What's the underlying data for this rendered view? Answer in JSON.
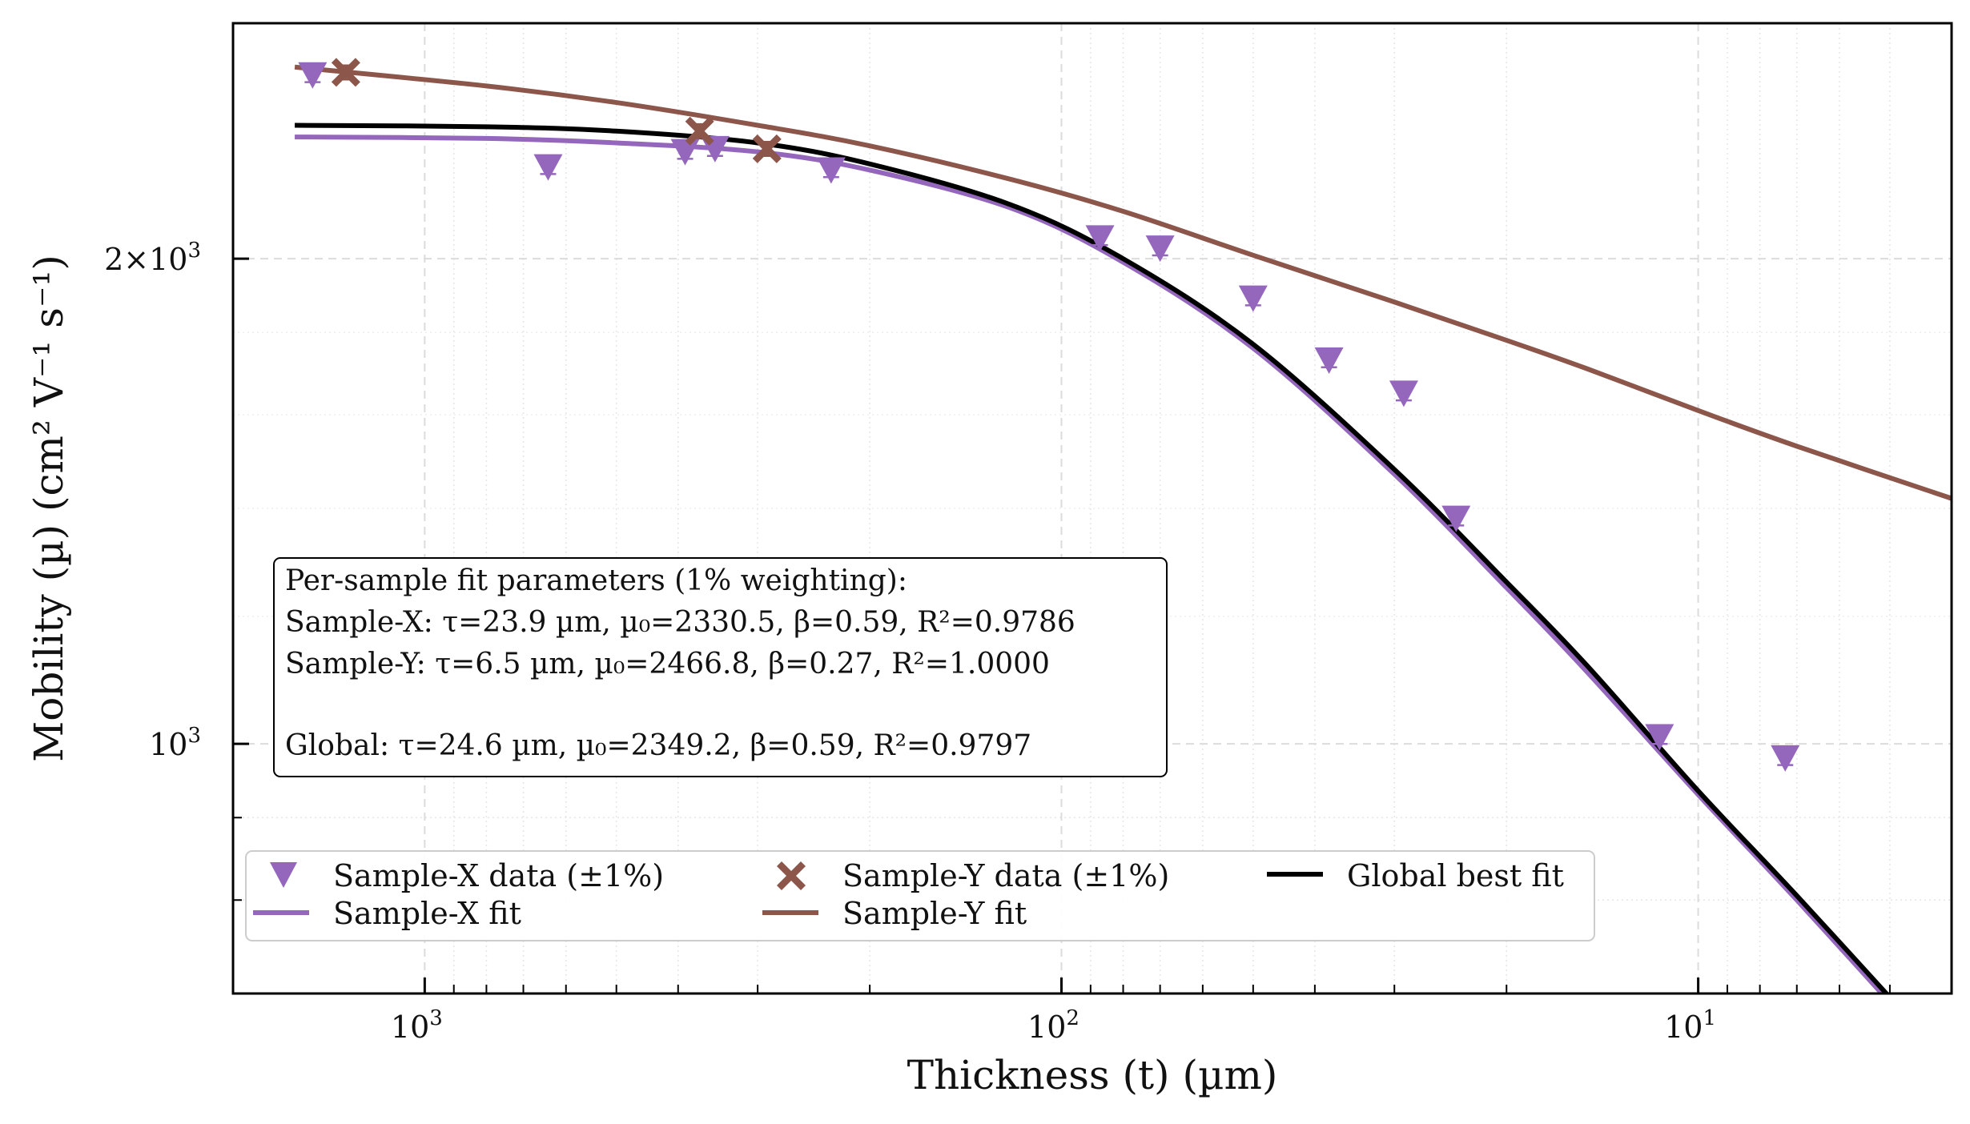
{
  "chart_data": {
    "type": "scatter",
    "xlabel": "Thickness (t) (µm)",
    "ylabel": "Mobility (µ) (cm² V⁻¹ s⁻¹)",
    "x_scale": "log",
    "x_reversed": true,
    "y_scale": "log",
    "xlim": [
      2000,
      4.0
    ],
    "ylim": [
      700,
      2800
    ],
    "x_ticks": [
      {
        "value": 1000,
        "base": "10",
        "exp": "3"
      },
      {
        "value": 100,
        "base": "10",
        "exp": "2"
      },
      {
        "value": 10,
        "base": "10",
        "exp": "1"
      }
    ],
    "y_ticks": [
      {
        "value": 2000,
        "pre": "2×10",
        "exp": "3"
      },
      {
        "value": 1000,
        "pre": "10",
        "exp": "3"
      }
    ],
    "grid": true,
    "series": [
      {
        "name": "Sample-X data (±1%)",
        "kind": "points",
        "marker": "triangle-down",
        "color": "#9467bd",
        "x": [
          1500,
          640,
          390,
          350,
          230,
          87,
          70,
          50,
          38,
          29,
          24,
          11.5,
          7.3
        ],
        "y": [
          2600,
          2280,
          2330,
          2340,
          2270,
          2060,
          2030,
          1890,
          1730,
          1650,
          1380,
          1010,
          980
        ]
      },
      {
        "name": "Sample-Y data (±1%)",
        "kind": "points",
        "marker": "x-filled",
        "color": "#8c564b",
        "x": [
          1330,
          370,
          290
        ],
        "y": [
          2610,
          2400,
          2340
        ]
      },
      {
        "name": "Sample-X fit",
        "kind": "line",
        "color": "#9467bd",
        "x": [
          1600,
          800,
          500,
          300,
          200,
          120,
          80,
          50,
          30,
          20,
          15,
          10,
          7,
          4.5
        ],
        "y": [
          2380,
          2375,
          2360,
          2330,
          2270,
          2150,
          1990,
          1760,
          1470,
          1250,
          1110,
          930,
          800,
          660
        ]
      },
      {
        "name": "Sample-Y fit",
        "kind": "line",
        "color": "#8c564b",
        "x": [
          1600,
          800,
          500,
          300,
          200,
          120,
          80,
          50,
          30,
          20,
          15,
          10,
          7,
          4.0
        ],
        "y": [
          2630,
          2560,
          2500,
          2420,
          2350,
          2240,
          2140,
          2010,
          1880,
          1780,
          1710,
          1610,
          1530,
          1420
        ]
      },
      {
        "name": "Global best fit",
        "kind": "line",
        "color": "#000000",
        "x": [
          1600,
          800,
          500,
          300,
          200,
          120,
          80,
          50,
          30,
          20,
          15,
          10,
          7,
          4.5
        ],
        "y": [
          2420,
          2415,
          2400,
          2360,
          2290,
          2160,
          2000,
          1770,
          1480,
          1260,
          1120,
          935,
          805,
          665
        ]
      }
    ],
    "legend": {
      "placement": "lower-left",
      "columns": 3,
      "entries": [
        {
          "label": "Sample-X data (±1%)",
          "symbol": "triangle-down",
          "color": "#9467bd"
        },
        {
          "label": "Sample-X fit",
          "symbol": "line",
          "color": "#9467bd"
        },
        {
          "label": "Sample-Y data (±1%)",
          "symbol": "x-filled",
          "color": "#8c564b"
        },
        {
          "label": "Sample-Y fit",
          "symbol": "line",
          "color": "#8c564b"
        },
        {
          "label": "Global best fit",
          "symbol": "line",
          "color": "#000000"
        }
      ]
    },
    "annotation": {
      "title": "Per-sample fit parameters (1% weighting):",
      "lines": [
        "Sample-X: τ=23.9 µm, µ₀=2330.5, β=0.59, R²=0.9786",
        "Sample-Y: τ=6.5 µm, µ₀=2466.8, β=0.27, R²=1.0000",
        "",
        "Global: τ=24.6 µm, µ₀=2349.2, β=0.59, R²=0.9797"
      ]
    }
  }
}
